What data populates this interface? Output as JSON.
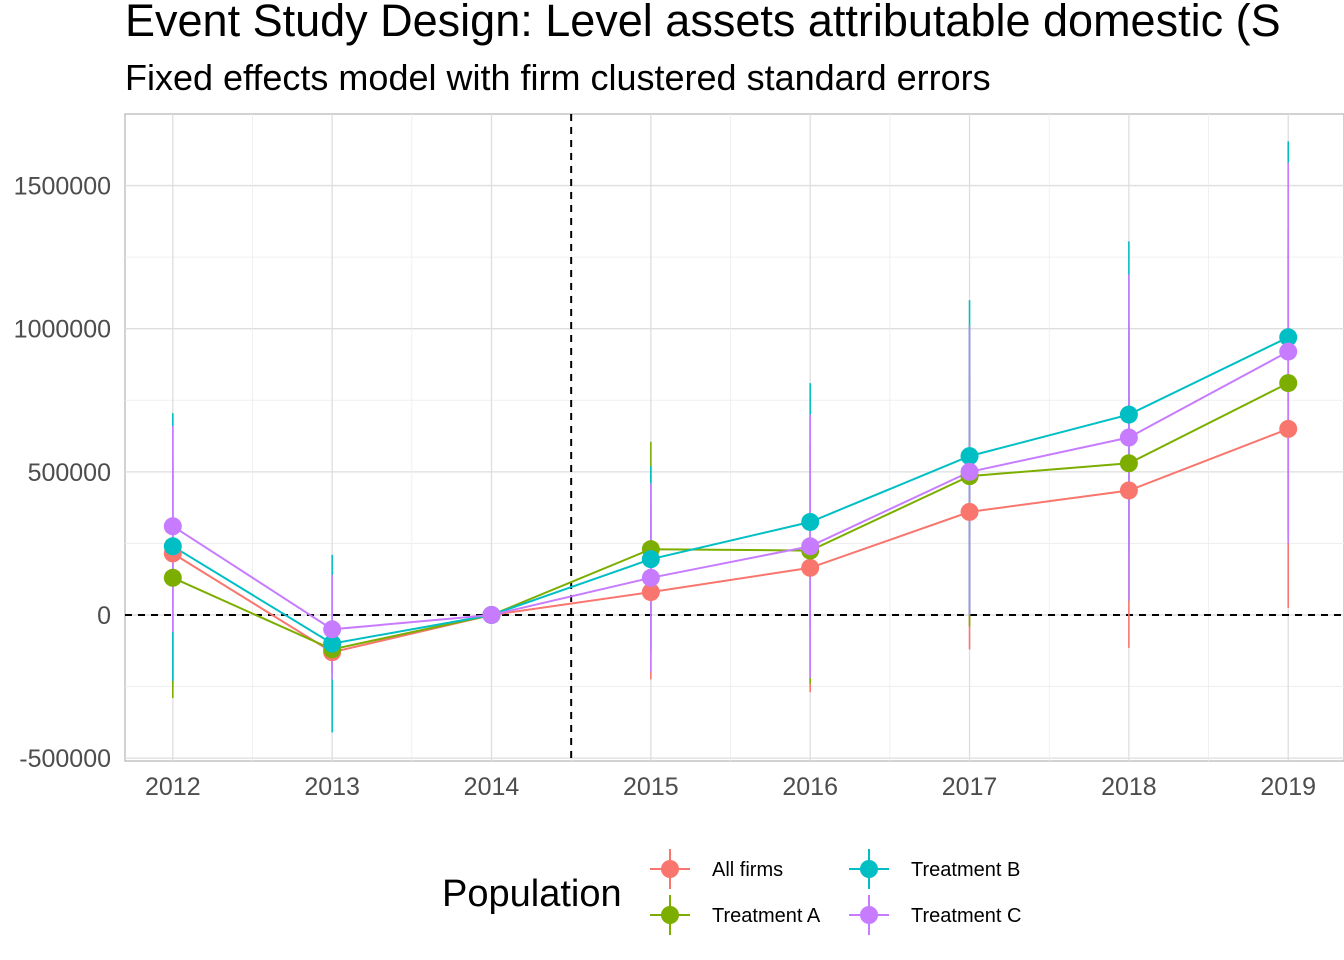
{
  "chart_data": {
    "type": "line",
    "title": "Event Study Design: Level assets attributable domestic  (S",
    "subtitle": "Fixed effects model with firm clustered standard errors",
    "xlabel": "",
    "ylabel": "",
    "categories": [
      "2012",
      "2013",
      "2014",
      "2015",
      "2016",
      "2017",
      "2018",
      "2019"
    ],
    "x": [
      2012,
      2013,
      2014,
      2015,
      2016,
      2017,
      2018,
      2019
    ],
    "xlim": [
      2011.7,
      2019.35
    ],
    "ylim": [
      -510000,
      1750000
    ],
    "y_ticks": [
      -500000,
      0,
      500000,
      1000000,
      1500000
    ],
    "y_tick_labels": [
      "-500000",
      "0",
      "500000",
      "1000000",
      "1500000"
    ],
    "grid": true,
    "reference_lines": {
      "vertical_x": 2014.5,
      "horizontal_y": 0,
      "style": "dashed"
    },
    "legend": {
      "title": "Population",
      "placement": "bottom"
    },
    "series": [
      {
        "name": "All firms",
        "color": "#F8766D",
        "values": [
          215000,
          -130000,
          0,
          80000,
          165000,
          360000,
          435000,
          650000
        ],
        "lower": [
          -250000,
          -210000,
          0,
          -225000,
          -270000,
          -120000,
          -115000,
          25000
        ],
        "upper": [
          650000,
          -60000,
          0,
          380000,
          600000,
          840000,
          985000,
          1270000
        ]
      },
      {
        "name": "Treatment A",
        "color": "#7CAE00",
        "values": [
          130000,
          -120000,
          0,
          230000,
          225000,
          485000,
          530000,
          810000
        ],
        "lower": [
          -290000,
          -200000,
          0,
          -110000,
          -240000,
          -40000,
          50000,
          265000
        ],
        "upper": [
          545000,
          -40000,
          0,
          605000,
          690000,
          1010000,
          1010000,
          1350000
        ]
      },
      {
        "name": "Treatment B",
        "color": "#00BFC4",
        "values": [
          240000,
          -100000,
          0,
          195000,
          325000,
          555000,
          700000,
          970000
        ],
        "lower": [
          -230000,
          -410000,
          0,
          -130000,
          -40000,
          0,
          215000,
          290000
        ],
        "upper": [
          705000,
          210000,
          0,
          520000,
          810000,
          1100000,
          1305000,
          1655000
        ]
      },
      {
        "name": "Treatment C",
        "color": "#C77CFF",
        "values": [
          310000,
          -50000,
          0,
          130000,
          240000,
          500000,
          620000,
          920000
        ],
        "lower": [
          -60000,
          -225000,
          0,
          -200000,
          -220000,
          0,
          50000,
          250000
        ],
        "upper": [
          660000,
          140000,
          0,
          460000,
          700000,
          1010000,
          1190000,
          1580000
        ]
      }
    ]
  }
}
